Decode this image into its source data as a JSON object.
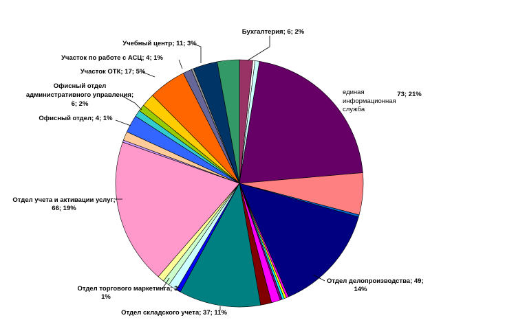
{
  "chart_data": {
    "type": "pie",
    "title": "",
    "slices": [
      {
        "value": 6,
        "color": "#993366"
      },
      {
        "value": 1,
        "color": "#ffffff"
      },
      {
        "value": 2,
        "color": "#ccffff"
      },
      {
        "value": 73,
        "color": "#660066",
        "label_lines": [
          "единая",
          "информационная",
          "служба"
        ],
        "value_label": "73; 21%"
      },
      {
        "value": 19,
        "color": "#ff8080"
      },
      {
        "value": 1,
        "color": "#0066cc"
      },
      {
        "value": 49,
        "color": "#000080",
        "label_lines": [
          "Отдел делопроизводства; 49;",
          "14%"
        ]
      },
      {
        "value": 1,
        "color": "#ff00ff"
      },
      {
        "value": 1,
        "color": "#ffff00"
      },
      {
        "value": 1,
        "color": "#00ffff"
      },
      {
        "value": 1,
        "color": "#800080"
      },
      {
        "value": 4,
        "color": "#ff00ff"
      },
      {
        "value": 5,
        "color": "#800000"
      },
      {
        "value": 37,
        "color": "#008080",
        "label_lines": [
          "Отдел складского учета; 37; 11%"
        ]
      },
      {
        "value": 2,
        "color": "#0000ff"
      },
      {
        "value": 4,
        "color": "#ccffff"
      },
      {
        "value": 3,
        "color": "#ccffcc",
        "label_lines": [
          "Отдел торгового маркетинга; 3;",
          "1%"
        ]
      },
      {
        "value": 3,
        "color": "#ffff99"
      },
      {
        "value": 66,
        "color": "#ff99cc",
        "label_lines": [
          "Отдел учета и активации услуг;",
          "66; 19%"
        ]
      },
      {
        "value": 1,
        "color": "#cc99ff"
      },
      {
        "value": 4,
        "color": "#ffcc99",
        "label_lines": [
          "Офисный отдел; 4; 1%"
        ]
      },
      {
        "value": 8,
        "color": "#3366ff"
      },
      {
        "value": 3,
        "color": "#33cccc"
      },
      {
        "value": 3,
        "color": "#99cc00"
      },
      {
        "value": 6,
        "color": "#ffcc00",
        "label_lines": [
          "Офисный отдел",
          "административного управления;",
          "6; 2%"
        ]
      },
      {
        "value": 17,
        "color": "#ff6600",
        "label_lines": [
          "Участок ОТК; 17; 5%"
        ]
      },
      {
        "value": 4,
        "color": "#666699",
        "label_lines": [
          "Участок по работе с АСЦ; 4; 1%"
        ]
      },
      {
        "value": 1,
        "color": "#969696"
      },
      {
        "value": 11,
        "color": "#003366",
        "label_lines": [
          "Учебный центр; 11; 3%"
        ]
      },
      {
        "value": 10,
        "color": "#339966"
      }
    ],
    "top_label": [
      "Бухгалтерия; 6; 2%"
    ],
    "legend": "none"
  }
}
